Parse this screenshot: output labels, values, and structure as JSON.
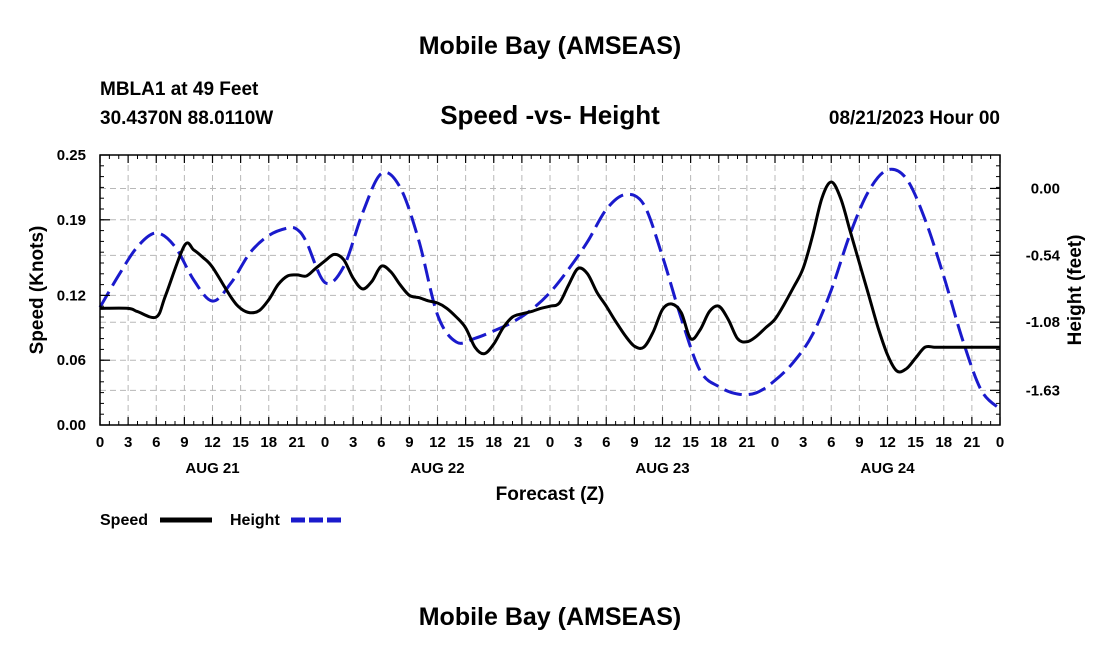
{
  "page_title": "Mobile Bay (AMSEAS)",
  "footer_title": "Mobile Bay (AMSEAS)",
  "station": "MBLA1 at 49 Feet",
  "coords": "30.4370N  88.0110W",
  "run_time": "08/21/2023 Hour 00",
  "chart_data": {
    "type": "line",
    "title": "Speed -vs- Height",
    "xlabel": "Forecast (Z)",
    "ylabel_left": "Speed (Knots)",
    "ylabel_right": "Height (feet)",
    "x_range": [
      0,
      96
    ],
    "x_tick_values": [
      0,
      3,
      6,
      9,
      12,
      15,
      18,
      21,
      24,
      27,
      30,
      33,
      36,
      39,
      42,
      45,
      48,
      51,
      54,
      57,
      60,
      63,
      66,
      69,
      72,
      75,
      78,
      81,
      84,
      87,
      90,
      93,
      96
    ],
    "x_tick_labels": [
      "0",
      "3",
      "6",
      "9",
      "12",
      "15",
      "18",
      "21",
      "0",
      "3",
      "6",
      "9",
      "12",
      "15",
      "18",
      "21",
      "0",
      "3",
      "6",
      "9",
      "12",
      "15",
      "18",
      "21",
      "0",
      "3",
      "6",
      "9",
      "12",
      "15",
      "18",
      "21",
      "0"
    ],
    "day_labels": [
      {
        "label": "AUG 21",
        "x": 12
      },
      {
        "label": "AUG 22",
        "x": 36
      },
      {
        "label": "AUG 23",
        "x": 60
      },
      {
        "label": "AUG 24",
        "x": 84
      }
    ],
    "y_left": {
      "range": [
        0,
        0.25
      ],
      "ticks": [
        0.0,
        0.06,
        0.12,
        0.19,
        0.25
      ],
      "tick_labels": [
        "0.00",
        "0.06",
        "0.12",
        "0.19",
        "0.25"
      ]
    },
    "y_right": {
      "range": [
        -1.91,
        0.27
      ],
      "ticks": [
        0.0,
        -0.54,
        -1.08,
        -1.63
      ],
      "tick_labels": [
        "0.00",
        "-0.54",
        "-1.08",
        "-1.63"
      ]
    },
    "grid": true,
    "legend": [
      {
        "label": "Speed",
        "color": "#000000",
        "style": "solid"
      },
      {
        "label": "Height",
        "color": "#1a1acc",
        "style": "dashed"
      }
    ],
    "series": [
      {
        "name": "Speed",
        "axis": "left",
        "color": "#000000",
        "style": "solid",
        "x": [
          0,
          3,
          4,
          6,
          7,
          9,
          10,
          11,
          12,
          14,
          15,
          16,
          17,
          18,
          19,
          20,
          21,
          22,
          23,
          24,
          25,
          26,
          27,
          28,
          29,
          30,
          31,
          32,
          33,
          34,
          35,
          36,
          37,
          38,
          39,
          40,
          41,
          42,
          43,
          44,
          45,
          46,
          47,
          48,
          49,
          50,
          51,
          52,
          53,
          54,
          55,
          56,
          57,
          58,
          59,
          60,
          61,
          62,
          63,
          64,
          65,
          66,
          67,
          68,
          69,
          70,
          71,
          72,
          73,
          74,
          75,
          76,
          77,
          78,
          79,
          80,
          81,
          82,
          83,
          84,
          85,
          86,
          87,
          88,
          89,
          90,
          91,
          92,
          93,
          94,
          95,
          96
        ],
        "values": [
          0.108,
          0.108,
          0.105,
          0.1,
          0.12,
          0.166,
          0.162,
          0.155,
          0.146,
          0.118,
          0.108,
          0.104,
          0.106,
          0.116,
          0.13,
          0.138,
          0.139,
          0.138,
          0.145,
          0.152,
          0.158,
          0.153,
          0.136,
          0.126,
          0.133,
          0.147,
          0.142,
          0.13,
          0.12,
          0.118,
          0.115,
          0.113,
          0.108,
          0.1,
          0.09,
          0.072,
          0.066,
          0.075,
          0.09,
          0.1,
          0.103,
          0.105,
          0.108,
          0.11,
          0.113,
          0.13,
          0.145,
          0.14,
          0.123,
          0.11,
          0.096,
          0.083,
          0.073,
          0.072,
          0.086,
          0.107,
          0.112,
          0.104,
          0.08,
          0.088,
          0.105,
          0.11,
          0.098,
          0.08,
          0.077,
          0.082,
          0.09,
          0.098,
          0.112,
          0.128,
          0.145,
          0.175,
          0.21,
          0.225,
          0.21,
          0.18,
          0.15,
          0.12,
          0.09,
          0.065,
          0.05,
          0.052,
          0.062,
          0.072,
          0.072,
          0.072,
          0.072,
          0.072,
          0.072,
          0.072,
          0.072,
          0.072
        ]
      },
      {
        "name": "Height",
        "axis": "right",
        "color": "#1a1acc",
        "style": "dashed",
        "x": [
          0,
          2,
          4,
          6,
          8,
          10,
          12,
          14,
          16,
          18,
          20,
          21,
          22,
          24,
          26,
          28,
          30,
          32,
          34,
          36,
          38,
          40,
          42,
          44,
          46,
          48,
          50,
          52,
          54,
          56,
          58,
          60,
          62,
          64,
          66,
          68,
          70,
          72,
          74,
          76,
          78,
          80,
          82,
          84,
          86,
          88,
          90,
          92,
          94,
          96
        ],
        "values": [
          -0.96,
          -0.7,
          -0.47,
          -0.36,
          -0.47,
          -0.74,
          -0.91,
          -0.76,
          -0.52,
          -0.38,
          -0.32,
          -0.33,
          -0.43,
          -0.76,
          -0.63,
          -0.2,
          0.12,
          0.01,
          -0.42,
          -1.02,
          -1.24,
          -1.21,
          -1.15,
          -1.08,
          -0.98,
          -0.84,
          -0.65,
          -0.43,
          -0.17,
          -0.05,
          -0.13,
          -0.55,
          -1.05,
          -1.47,
          -1.6,
          -1.66,
          -1.65,
          -1.55,
          -1.4,
          -1.18,
          -0.82,
          -0.37,
          -0.02,
          0.15,
          0.08,
          -0.25,
          -0.71,
          -1.22,
          -1.63,
          -1.78
        ]
      }
    ]
  }
}
